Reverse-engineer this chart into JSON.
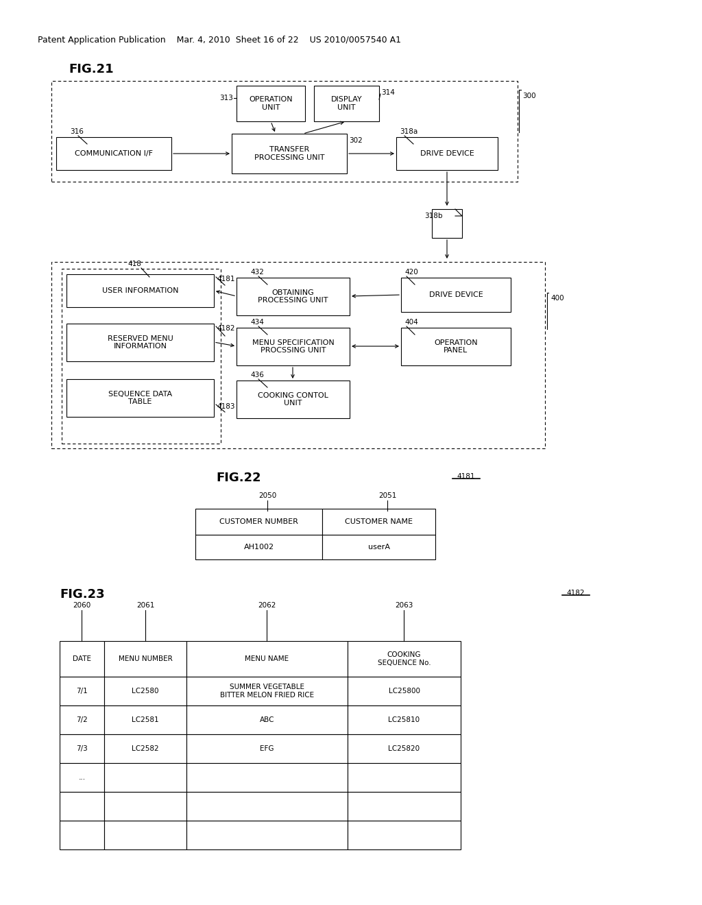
{
  "bg_color": "#ffffff",
  "header": "Patent Application Publication    Mar. 4, 2010  Sheet 16 of 22    US 2010/0057540 A1",
  "fig21_label": "FIG.21",
  "fig22_label": "FIG.22",
  "fig23_label": "FIG.23"
}
